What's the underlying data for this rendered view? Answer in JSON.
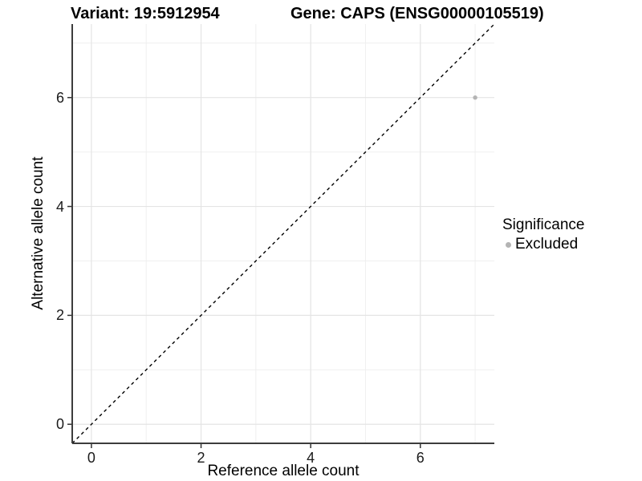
{
  "title": {
    "left": "Variant: 19:5912954",
    "right": "Gene: CAPS (ENSG00000105519)"
  },
  "chart_data": {
    "type": "scatter",
    "title": "Variant: 19:5912954    Gene: CAPS (ENSG00000105519)",
    "xlabel": "Reference allele count",
    "ylabel": "Alternative allele count",
    "xlim": [
      -0.35,
      7.35
    ],
    "ylim": [
      -0.35,
      7.35
    ],
    "x_ticks": [
      0,
      2,
      4,
      6
    ],
    "y_ticks": [
      0,
      2,
      4,
      6
    ],
    "x_minor_ticks": [
      1,
      3,
      5,
      7
    ],
    "y_minor_ticks": [
      1,
      3,
      5,
      7
    ],
    "grid": "major and minor, light grey on white",
    "points": [
      {
        "x": 7,
        "y": 6,
        "significance": "Excluded"
      }
    ],
    "identity_line": {
      "shown": true,
      "equation": "y = x",
      "style": "dashed",
      "color": "#000000"
    },
    "legend": {
      "title": "Significance",
      "position": "right",
      "entries": [
        {
          "label": "Excluded",
          "color": "#b4b4b4"
        }
      ]
    },
    "colors": {
      "point": "#b4b4b4",
      "grid_major": "#e4e4e4",
      "grid_minor": "#efefef",
      "axis_line": "#3c3c3c",
      "tick_mark": "#333333"
    }
  }
}
